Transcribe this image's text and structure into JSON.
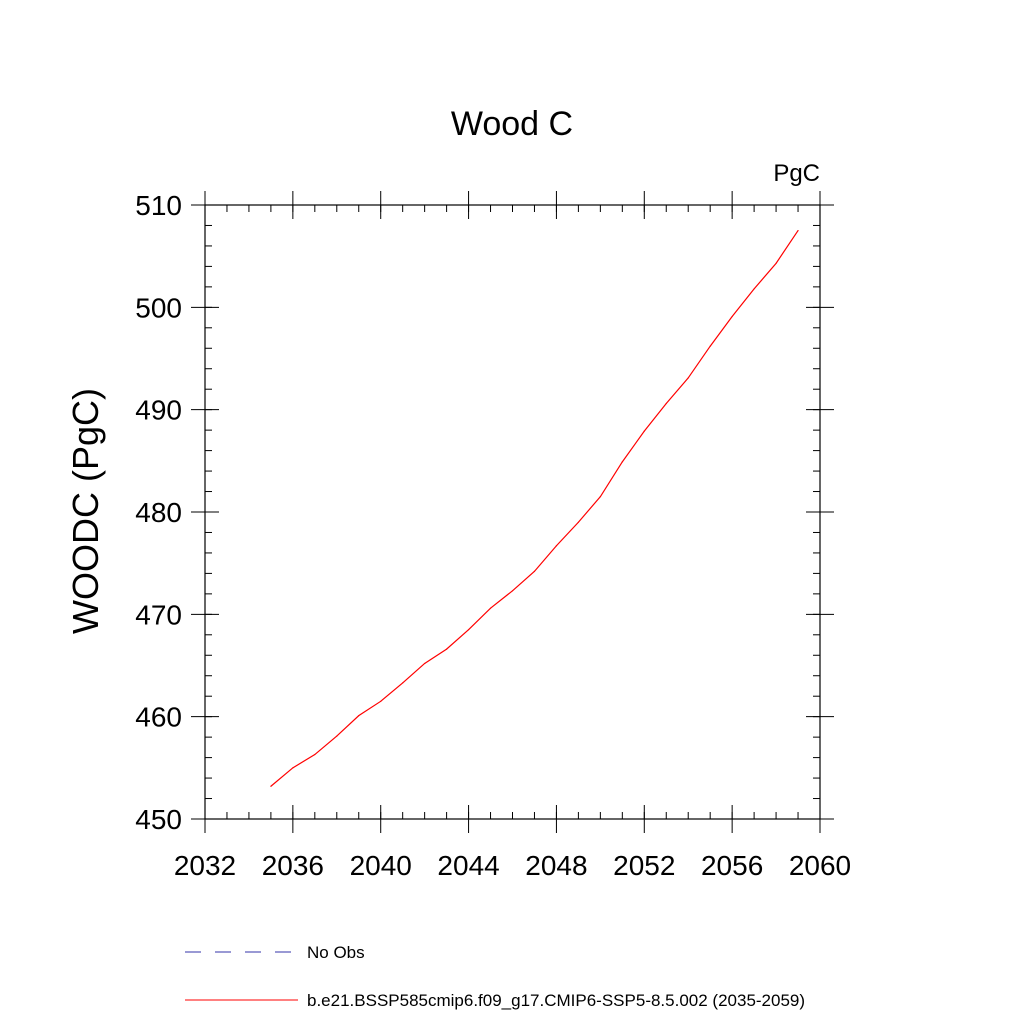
{
  "chart_data": {
    "type": "line",
    "title": "Wood C",
    "units_label": "PgC",
    "ylabel": "WOODC  (PgC)",
    "xlabel": "",
    "xlim": [
      2032,
      2060
    ],
    "ylim": [
      450,
      510
    ],
    "x_ticks": [
      2032,
      2036,
      2040,
      2044,
      2048,
      2052,
      2056,
      2060
    ],
    "y_ticks": [
      450,
      460,
      470,
      480,
      490,
      500,
      510
    ],
    "x_minor_step": 1,
    "y_minor_step": 2,
    "grid": false,
    "legend_position": "bottom",
    "legend": [
      {
        "label": "No Obs",
        "color": "#3333aa",
        "style": "dashed"
      },
      {
        "label": "b.e21.BSSP585cmip6.f09_g17.CMIP6-SSP5-8.5.002 (2035-2059)",
        "color": "#ff0000",
        "style": "solid"
      }
    ],
    "series": [
      {
        "color": "#ff0000",
        "x": [
          2035,
          2036,
          2037,
          2038,
          2039,
          2040,
          2041,
          2042,
          2043,
          2044,
          2045,
          2046,
          2047,
          2048,
          2049,
          2050,
          2051,
          2052,
          2053,
          2054,
          2055,
          2056,
          2057,
          2058,
          2059
        ],
        "values": [
          453.2,
          455.0,
          456.3,
          458.1,
          460.1,
          461.5,
          463.3,
          465.2,
          466.6,
          468.5,
          470.6,
          472.3,
          474.2,
          476.7,
          479.0,
          481.5,
          484.9,
          487.9,
          490.6,
          493.1,
          496.2,
          499.1,
          501.8,
          504.3,
          507.5
        ]
      }
    ]
  }
}
